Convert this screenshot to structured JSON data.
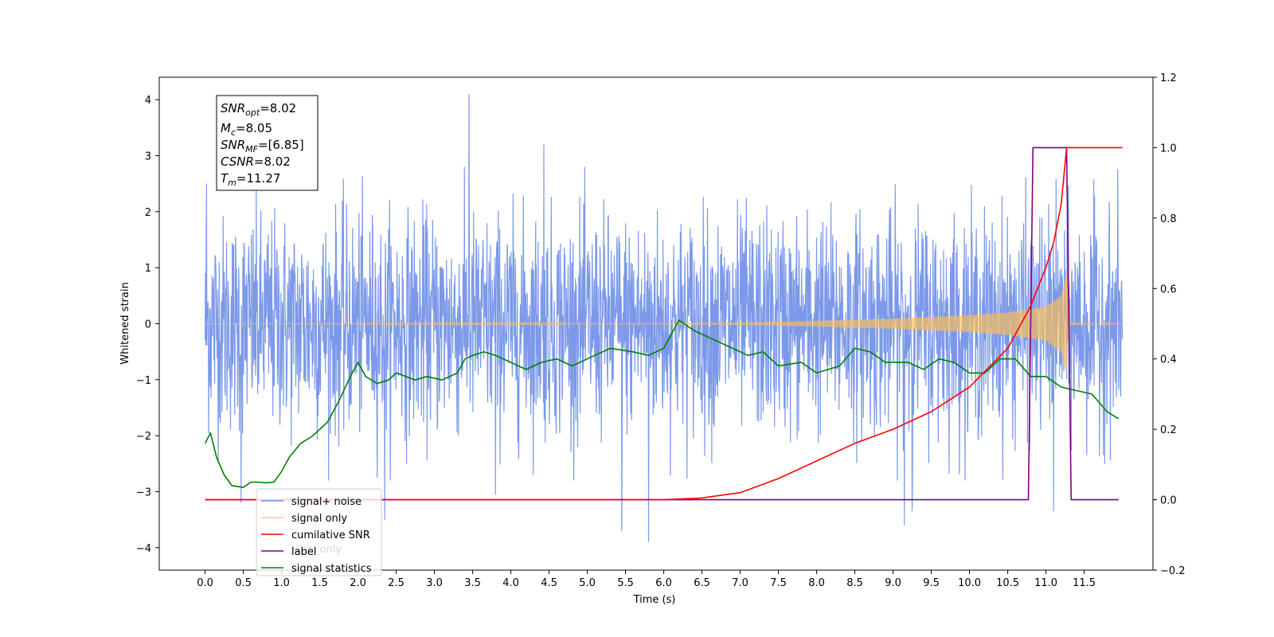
{
  "chart_data": {
    "type": "line",
    "xlabel": "Time (s)",
    "ylabel": "Whitened strain",
    "x_ticks": [
      "0.0",
      "0.5",
      "1.0",
      "1.5",
      "2.0",
      "2.5",
      "3.0",
      "3.5",
      "4.0",
      "4.5",
      "5.0",
      "5.5",
      "6.0",
      "6.5",
      "7.0",
      "7.5",
      "8.0",
      "8.5",
      "9.0",
      "9.5",
      "10.0",
      "10.5",
      "11.0",
      "11.5"
    ],
    "y_ticks_left": [
      "4",
      "3",
      "2",
      "1",
      "0",
      "−1",
      "−2",
      "−3",
      "−4"
    ],
    "y_ticks_right": [
      "1.2",
      "1.0",
      "0.8",
      "0.6",
      "0.4",
      "0.2",
      "0.0",
      "−0.2"
    ],
    "xlim": [
      -0.6,
      12.4
    ],
    "ylim_left": [
      -4.4,
      4.4
    ],
    "ylim_right": [
      -0.2,
      1.2
    ],
    "grid": false,
    "legend_placement": "lower-left",
    "stats_box": {
      "snr_opt": {
        "base": "SNR",
        "sub": "opt",
        "value": "=8.02"
      },
      "mc": {
        "base": "M",
        "sub": "c",
        "value": "=8.05"
      },
      "snr_mf": {
        "base": "SNR",
        "sub": "MF",
        "value": "=[6.85]"
      },
      "csnr": {
        "base": "CSNR",
        "sub": "",
        "value": "=8.02"
      },
      "tm": {
        "base": "T",
        "sub": "m",
        "value": "=11.27"
      }
    },
    "legend": [
      {
        "label": "signal+ noise",
        "color": "#7593e8"
      },
      {
        "label": "signal only",
        "color": "#ffbf52"
      },
      {
        "label": "cumilative SNR",
        "color": "#ff0000"
      },
      {
        "label": "label",
        "color": "#800080"
      },
      {
        "label": "signal statistics",
        "color": "#008000"
      }
    ],
    "hidden_label_text": "label only",
    "series": [
      {
        "name": "signal+ noise",
        "axis": "left",
        "color": "#7593e8",
        "x_range": [
          0.0,
          12.0
        ],
        "y_band": [
          -2.8,
          2.8
        ],
        "peak_values": [
          {
            "x": 0.02,
            "y": 2.5
          },
          {
            "x": 0.47,
            "y": -3.2
          },
          {
            "x": 2.35,
            "y": -3.5
          },
          {
            "x": 3.45,
            "y": 4.1
          },
          {
            "x": 3.8,
            "y": -3.05
          },
          {
            "x": 4.43,
            "y": 3.2
          },
          {
            "x": 5.45,
            "y": -3.7
          },
          {
            "x": 5.8,
            "y": -3.9
          },
          {
            "x": 9.15,
            "y": -3.6
          },
          {
            "x": 9.25,
            "y": -3.35
          },
          {
            "x": 11.1,
            "y": -3.35
          }
        ]
      },
      {
        "name": "signal only",
        "axis": "left",
        "color": "#ffbf52",
        "envelope": [
          {
            "x": 0.0,
            "y": 0.0
          },
          {
            "x": 6.0,
            "y": 0.01
          },
          {
            "x": 7.0,
            "y": 0.02
          },
          {
            "x": 8.0,
            "y": 0.05
          },
          {
            "x": 9.0,
            "y": 0.09
          },
          {
            "x": 10.0,
            "y": 0.15
          },
          {
            "x": 10.5,
            "y": 0.2
          },
          {
            "x": 11.0,
            "y": 0.3
          },
          {
            "x": 11.2,
            "y": 0.5
          },
          {
            "x": 11.27,
            "y": 0.9
          },
          {
            "x": 11.3,
            "y": 0.02
          },
          {
            "x": 12.0,
            "y": 0.0
          }
        ]
      },
      {
        "name": "cumilative SNR",
        "axis": "right",
        "color": "#ff0000",
        "points": [
          {
            "x": 0.0,
            "y": 0.0
          },
          {
            "x": 6.0,
            "y": 0.0
          },
          {
            "x": 6.5,
            "y": 0.005
          },
          {
            "x": 7.0,
            "y": 0.02
          },
          {
            "x": 7.5,
            "y": 0.06
          },
          {
            "x": 8.0,
            "y": 0.11
          },
          {
            "x": 8.5,
            "y": 0.16
          },
          {
            "x": 9.0,
            "y": 0.2
          },
          {
            "x": 9.5,
            "y": 0.25
          },
          {
            "x": 10.0,
            "y": 0.32
          },
          {
            "x": 10.5,
            "y": 0.43
          },
          {
            "x": 10.8,
            "y": 0.55
          },
          {
            "x": 11.0,
            "y": 0.66
          },
          {
            "x": 11.1,
            "y": 0.73
          },
          {
            "x": 11.2,
            "y": 0.84
          },
          {
            "x": 11.27,
            "y": 1.0
          },
          {
            "x": 12.0,
            "y": 1.0
          }
        ]
      },
      {
        "name": "label",
        "axis": "right",
        "color": "#800080",
        "points": [
          {
            "x": 0.0,
            "y": 0.0
          },
          {
            "x": 10.77,
            "y": 0.0
          },
          {
            "x": 10.83,
            "y": 1.0
          },
          {
            "x": 11.27,
            "y": 1.0
          },
          {
            "x": 11.33,
            "y": 0.0
          },
          {
            "x": 11.95,
            "y": 0.0
          }
        ]
      },
      {
        "name": "signal statistics",
        "axis": "right",
        "color": "#008000",
        "points": [
          {
            "x": 0.0,
            "y": 0.16
          },
          {
            "x": 0.07,
            "y": 0.19
          },
          {
            "x": 0.15,
            "y": 0.12
          },
          {
            "x": 0.25,
            "y": 0.07
          },
          {
            "x": 0.35,
            "y": 0.04
          },
          {
            "x": 0.5,
            "y": 0.035
          },
          {
            "x": 0.6,
            "y": 0.05
          },
          {
            "x": 0.7,
            "y": 0.05
          },
          {
            "x": 0.8,
            "y": 0.048
          },
          {
            "x": 0.9,
            "y": 0.05
          },
          {
            "x": 1.0,
            "y": 0.08
          },
          {
            "x": 1.1,
            "y": 0.12
          },
          {
            "x": 1.25,
            "y": 0.16
          },
          {
            "x": 1.4,
            "y": 0.18
          },
          {
            "x": 1.6,
            "y": 0.22
          },
          {
            "x": 1.75,
            "y": 0.28
          },
          {
            "x": 1.9,
            "y": 0.35
          },
          {
            "x": 2.0,
            "y": 0.39
          },
          {
            "x": 2.1,
            "y": 0.35
          },
          {
            "x": 2.25,
            "y": 0.33
          },
          {
            "x": 2.4,
            "y": 0.34
          },
          {
            "x": 2.5,
            "y": 0.36
          },
          {
            "x": 2.75,
            "y": 0.34
          },
          {
            "x": 2.9,
            "y": 0.35
          },
          {
            "x": 3.1,
            "y": 0.34
          },
          {
            "x": 3.3,
            "y": 0.36
          },
          {
            "x": 3.4,
            "y": 0.4
          },
          {
            "x": 3.5,
            "y": 0.41
          },
          {
            "x": 3.65,
            "y": 0.42
          },
          {
            "x": 3.8,
            "y": 0.41
          },
          {
            "x": 4.0,
            "y": 0.39
          },
          {
            "x": 4.2,
            "y": 0.37
          },
          {
            "x": 4.4,
            "y": 0.39
          },
          {
            "x": 4.6,
            "y": 0.4
          },
          {
            "x": 4.8,
            "y": 0.38
          },
          {
            "x": 5.0,
            "y": 0.4
          },
          {
            "x": 5.3,
            "y": 0.43
          },
          {
            "x": 5.6,
            "y": 0.42
          },
          {
            "x": 5.8,
            "y": 0.41
          },
          {
            "x": 6.0,
            "y": 0.43
          },
          {
            "x": 6.2,
            "y": 0.51
          },
          {
            "x": 6.4,
            "y": 0.48
          },
          {
            "x": 6.6,
            "y": 0.46
          },
          {
            "x": 6.9,
            "y": 0.43
          },
          {
            "x": 7.1,
            "y": 0.41
          },
          {
            "x": 7.3,
            "y": 0.42
          },
          {
            "x": 7.5,
            "y": 0.38
          },
          {
            "x": 7.8,
            "y": 0.39
          },
          {
            "x": 8.0,
            "y": 0.36
          },
          {
            "x": 8.3,
            "y": 0.38
          },
          {
            "x": 8.5,
            "y": 0.43
          },
          {
            "x": 8.7,
            "y": 0.42
          },
          {
            "x": 8.9,
            "y": 0.39
          },
          {
            "x": 9.2,
            "y": 0.39
          },
          {
            "x": 9.4,
            "y": 0.37
          },
          {
            "x": 9.6,
            "y": 0.4
          },
          {
            "x": 9.8,
            "y": 0.39
          },
          {
            "x": 10.0,
            "y": 0.36
          },
          {
            "x": 10.2,
            "y": 0.36
          },
          {
            "x": 10.4,
            "y": 0.4
          },
          {
            "x": 10.6,
            "y": 0.4
          },
          {
            "x": 10.8,
            "y": 0.35
          },
          {
            "x": 11.0,
            "y": 0.35
          },
          {
            "x": 11.2,
            "y": 0.32
          },
          {
            "x": 11.4,
            "y": 0.31
          },
          {
            "x": 11.6,
            "y": 0.3
          },
          {
            "x": 11.8,
            "y": 0.25
          },
          {
            "x": 11.95,
            "y": 0.23
          }
        ]
      }
    ]
  }
}
